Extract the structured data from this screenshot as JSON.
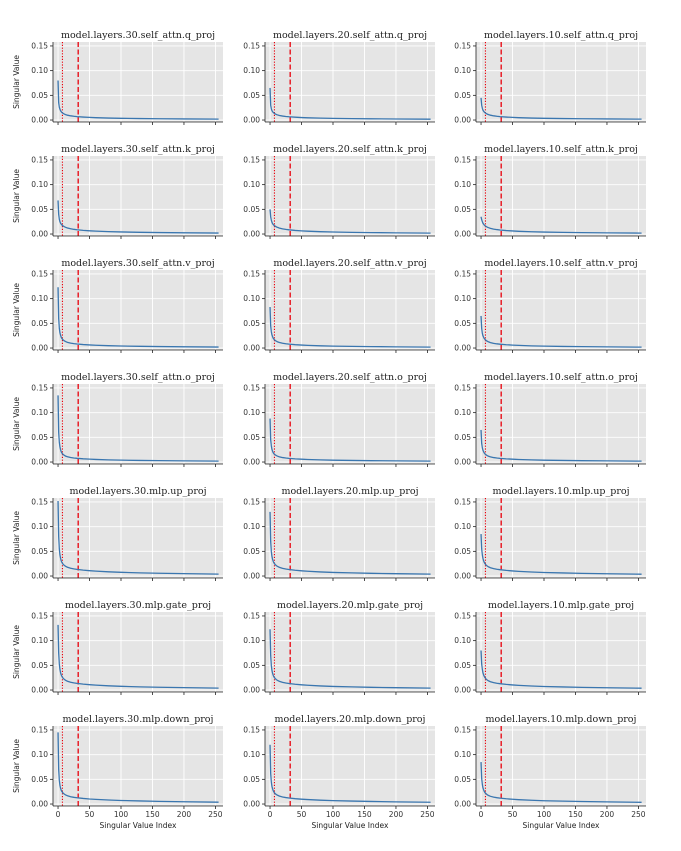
{
  "chart_data": {
    "type": "line",
    "grid": true,
    "colors": {
      "panel_background": "#e5e5e5",
      "grid": "#ffffff",
      "series": "#3a76af",
      "reference_lines": "#e8000b"
    },
    "xlabel": "Singular Value Index",
    "ylabel": "Singular Value",
    "xlim": [
      -8,
      262
    ],
    "ylim": [
      -0.004,
      0.158
    ],
    "xticks": [
      0,
      50,
      100,
      150,
      200,
      250
    ],
    "yticks": [
      0.0,
      0.05,
      0.1,
      0.15
    ],
    "ytick_labels": [
      "0.00",
      "0.05",
      "0.10",
      "0.15"
    ],
    "reference_lines": [
      {
        "style": "dotted",
        "x": 7
      },
      {
        "style": "dashed",
        "x": 32
      }
    ],
    "decay_x": [
      0,
      1,
      2,
      3,
      4,
      5,
      6,
      8,
      10,
      12,
      15,
      20,
      25,
      30,
      40,
      50,
      60,
      80,
      100,
      130,
      160,
      200,
      255
    ],
    "panels": [
      {
        "title": "model.layers.30.self_attn.q_proj",
        "y": [
          0.08,
          0.035,
          0.026,
          0.022,
          0.019,
          0.017,
          0.0155,
          0.0135,
          0.012,
          0.011,
          0.0098,
          0.0085,
          0.0076,
          0.0069,
          0.006,
          0.0053,
          0.0047,
          0.004,
          0.0035,
          0.003,
          0.0026,
          0.0022,
          0.0018
        ]
      },
      {
        "title": "model.layers.20.self_attn.q_proj",
        "y": [
          0.065,
          0.03,
          0.023,
          0.019,
          0.017,
          0.0155,
          0.0143,
          0.0125,
          0.0112,
          0.0103,
          0.0092,
          0.008,
          0.0072,
          0.0066,
          0.0057,
          0.005,
          0.0045,
          0.0038,
          0.0033,
          0.0028,
          0.0025,
          0.0021,
          0.0017
        ]
      },
      {
        "title": "model.layers.10.self_attn.q_proj",
        "y": [
          0.045,
          0.03,
          0.024,
          0.02,
          0.018,
          0.0165,
          0.0152,
          0.0133,
          0.012,
          0.011,
          0.0098,
          0.0085,
          0.0076,
          0.0069,
          0.006,
          0.0053,
          0.0047,
          0.004,
          0.0035,
          0.003,
          0.0026,
          0.0022,
          0.0018
        ]
      },
      {
        "title": "model.layers.30.self_attn.k_proj",
        "y": [
          0.068,
          0.04,
          0.03,
          0.025,
          0.022,
          0.02,
          0.0185,
          0.0163,
          0.0148,
          0.0136,
          0.0122,
          0.0106,
          0.0095,
          0.0086,
          0.0074,
          0.0065,
          0.0058,
          0.0048,
          0.0042,
          0.0035,
          0.003,
          0.0025,
          0.002
        ]
      },
      {
        "title": "model.layers.20.self_attn.k_proj",
        "y": [
          0.05,
          0.035,
          0.028,
          0.024,
          0.021,
          0.0195,
          0.018,
          0.016,
          0.0145,
          0.0134,
          0.012,
          0.0105,
          0.0094,
          0.0085,
          0.0073,
          0.0064,
          0.0057,
          0.0047,
          0.0041,
          0.0034,
          0.0029,
          0.0024,
          0.0019
        ]
      },
      {
        "title": "model.layers.10.self_attn.k_proj",
        "y": [
          0.035,
          0.029,
          0.025,
          0.022,
          0.02,
          0.0185,
          0.0172,
          0.0153,
          0.0139,
          0.0128,
          0.0115,
          0.01,
          0.009,
          0.0082,
          0.007,
          0.0062,
          0.0055,
          0.0046,
          0.004,
          0.0034,
          0.0029,
          0.0024,
          0.0019
        ]
      },
      {
        "title": "model.layers.30.self_attn.v_proj",
        "y": [
          0.123,
          0.06,
          0.04,
          0.031,
          0.026,
          0.022,
          0.0195,
          0.0165,
          0.0145,
          0.013,
          0.0115,
          0.0099,
          0.0089,
          0.0081,
          0.007,
          0.0062,
          0.0056,
          0.0047,
          0.0041,
          0.0035,
          0.003,
          0.0025,
          0.002
        ]
      },
      {
        "title": "model.layers.20.self_attn.v_proj",
        "y": [
          0.083,
          0.045,
          0.033,
          0.027,
          0.023,
          0.02,
          0.018,
          0.0155,
          0.0138,
          0.0125,
          0.0111,
          0.0096,
          0.0086,
          0.0079,
          0.0068,
          0.006,
          0.0054,
          0.0045,
          0.0039,
          0.0033,
          0.0029,
          0.0024,
          0.0019
        ]
      },
      {
        "title": "model.layers.10.self_attn.v_proj",
        "y": [
          0.065,
          0.04,
          0.03,
          0.025,
          0.022,
          0.0195,
          0.0178,
          0.0153,
          0.0137,
          0.0124,
          0.011,
          0.0095,
          0.0085,
          0.0078,
          0.0067,
          0.0059,
          0.0053,
          0.0044,
          0.0038,
          0.0032,
          0.0028,
          0.0023,
          0.0018
        ]
      },
      {
        "title": "model.layers.30.self_attn.o_proj",
        "y": [
          0.135,
          0.06,
          0.04,
          0.031,
          0.025,
          0.021,
          0.0185,
          0.0155,
          0.0135,
          0.012,
          0.0106,
          0.0091,
          0.0082,
          0.0075,
          0.0065,
          0.0058,
          0.0052,
          0.0044,
          0.0038,
          0.0032,
          0.0028,
          0.0023,
          0.0018
        ]
      },
      {
        "title": "model.layers.20.self_attn.o_proj",
        "y": [
          0.088,
          0.045,
          0.033,
          0.026,
          0.022,
          0.019,
          0.0172,
          0.0147,
          0.013,
          0.0118,
          0.0105,
          0.009,
          0.0081,
          0.0074,
          0.0064,
          0.0057,
          0.0051,
          0.0043,
          0.0037,
          0.0032,
          0.0027,
          0.0023,
          0.0018
        ]
      },
      {
        "title": "model.layers.10.self_attn.o_proj",
        "y": [
          0.065,
          0.038,
          0.029,
          0.024,
          0.021,
          0.0185,
          0.0168,
          0.0145,
          0.0129,
          0.0117,
          0.0104,
          0.009,
          0.0081,
          0.0074,
          0.0064,
          0.0057,
          0.0051,
          0.0043,
          0.0037,
          0.0032,
          0.0027,
          0.0023,
          0.0018
        ]
      },
      {
        "title": "model.layers.30.mlp.up_proj",
        "y": [
          0.152,
          0.08,
          0.055,
          0.043,
          0.036,
          0.031,
          0.028,
          0.024,
          0.0215,
          0.0197,
          0.0178,
          0.0158,
          0.0145,
          0.0135,
          0.012,
          0.0108,
          0.0099,
          0.0085,
          0.0075,
          0.0064,
          0.0056,
          0.0048,
          0.0039
        ]
      },
      {
        "title": "model.layers.20.mlp.up_proj",
        "y": [
          0.13,
          0.07,
          0.05,
          0.04,
          0.034,
          0.03,
          0.027,
          0.0235,
          0.021,
          0.0193,
          0.0175,
          0.0155,
          0.0142,
          0.0132,
          0.0117,
          0.0106,
          0.0097,
          0.0083,
          0.0073,
          0.0063,
          0.0055,
          0.0047,
          0.0038
        ]
      },
      {
        "title": "model.layers.10.mlp.up_proj",
        "y": [
          0.085,
          0.055,
          0.043,
          0.036,
          0.031,
          0.028,
          0.0255,
          0.0222,
          0.02,
          0.0185,
          0.0168,
          0.015,
          0.0138,
          0.0128,
          0.0114,
          0.0103,
          0.0094,
          0.0081,
          0.0072,
          0.0062,
          0.0054,
          0.0046,
          0.0037
        ]
      },
      {
        "title": "model.layers.30.mlp.gate_proj",
        "y": [
          0.132,
          0.075,
          0.053,
          0.042,
          0.035,
          0.031,
          0.028,
          0.024,
          0.0215,
          0.0197,
          0.0178,
          0.0158,
          0.0145,
          0.0135,
          0.012,
          0.0108,
          0.0099,
          0.0085,
          0.0075,
          0.0064,
          0.0056,
          0.0048,
          0.0039
        ]
      },
      {
        "title": "model.layers.20.mlp.gate_proj",
        "y": [
          0.123,
          0.07,
          0.05,
          0.04,
          0.034,
          0.03,
          0.027,
          0.0235,
          0.021,
          0.0193,
          0.0175,
          0.0155,
          0.0142,
          0.0132,
          0.0117,
          0.0106,
          0.0097,
          0.0083,
          0.0073,
          0.0063,
          0.0055,
          0.0047,
          0.0038
        ]
      },
      {
        "title": "model.layers.10.mlp.gate_proj",
        "y": [
          0.08,
          0.053,
          0.042,
          0.035,
          0.031,
          0.028,
          0.0255,
          0.0222,
          0.02,
          0.0185,
          0.0168,
          0.015,
          0.0138,
          0.0128,
          0.0114,
          0.0103,
          0.0094,
          0.0081,
          0.0072,
          0.0062,
          0.0054,
          0.0046,
          0.0037
        ]
      },
      {
        "title": "model.layers.30.mlp.down_proj",
        "y": [
          0.145,
          0.07,
          0.048,
          0.038,
          0.032,
          0.028,
          0.0255,
          0.0222,
          0.02,
          0.0184,
          0.0167,
          0.0148,
          0.0136,
          0.0127,
          0.0113,
          0.0102,
          0.0094,
          0.0081,
          0.0072,
          0.0062,
          0.0054,
          0.0046,
          0.0037
        ]
      },
      {
        "title": "model.layers.20.mlp.down_proj",
        "y": [
          0.12,
          0.062,
          0.045,
          0.036,
          0.031,
          0.027,
          0.0245,
          0.0213,
          0.0192,
          0.0177,
          0.016,
          0.0142,
          0.0131,
          0.0122,
          0.0108,
          0.0098,
          0.009,
          0.0078,
          0.0069,
          0.006,
          0.0052,
          0.0044,
          0.0036
        ]
      },
      {
        "title": "model.layers.10.mlp.down_proj",
        "y": [
          0.085,
          0.052,
          0.04,
          0.033,
          0.029,
          0.026,
          0.0237,
          0.0207,
          0.0187,
          0.0172,
          0.0156,
          0.0139,
          0.0128,
          0.0119,
          0.0106,
          0.0096,
          0.0088,
          0.0076,
          0.0067,
          0.0058,
          0.0051,
          0.0043,
          0.0035
        ]
      }
    ]
  }
}
